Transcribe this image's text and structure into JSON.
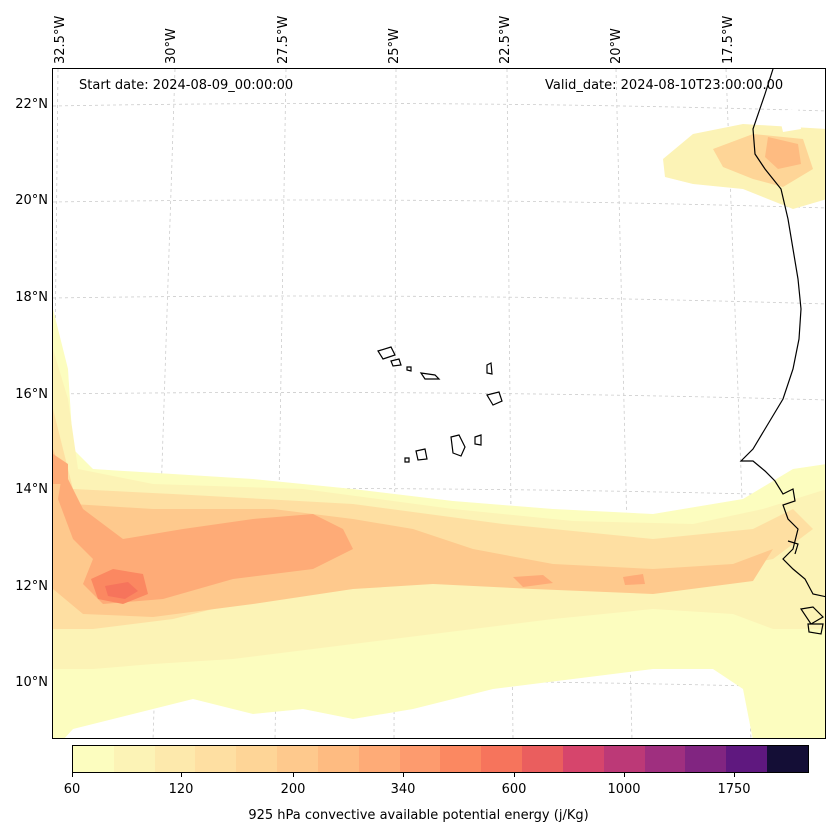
{
  "map": {
    "start_date": "Start date: 2024-08-09_00:00:00",
    "valid_date": "Valid_date: 2024-08-10T23:00:00.00",
    "lon_labels": [
      "32.5°W",
      "30°W",
      "27.5°W",
      "25°W",
      "22.5°W",
      "20°W",
      "17.5°W"
    ],
    "lat_labels": [
      "22°N",
      "20°N",
      "18°N",
      "16°N",
      "14°N",
      "12°N",
      "10°N"
    ],
    "variable": "925 hPa convective available potential energy",
    "colors": {
      "gridline": "#cccccc",
      "coastline": "#000000"
    }
  },
  "colorbar": {
    "label": "925 hPa convective available potential energy (j/Kg)",
    "tick_labels": [
      "60",
      "120",
      "200",
      "340",
      "600",
      "1000",
      "1750"
    ],
    "colors": [
      "#fcfdbf",
      "#fcf3b6",
      "#fde9ac",
      "#fedfa2",
      "#fed597",
      "#fec98d",
      "#febb81",
      "#feab77",
      "#fd9b6e",
      "#fb8861",
      "#f6745c",
      "#ea5e5e",
      "#d6456c",
      "#bc3977",
      "#9f2f7f",
      "#812581",
      "#5f187f",
      "#140e36"
    ]
  }
}
